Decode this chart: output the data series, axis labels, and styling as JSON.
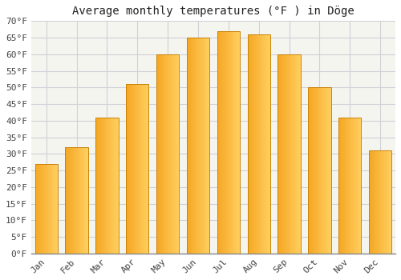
{
  "title": "Average monthly temperatures (°F ) in Döge",
  "months": [
    "Jan",
    "Feb",
    "Mar",
    "Apr",
    "May",
    "Jun",
    "Jul",
    "Aug",
    "Sep",
    "Oct",
    "Nov",
    "Dec"
  ],
  "values": [
    27,
    32,
    41,
    51,
    60,
    65,
    67,
    66,
    60,
    50,
    41,
    31
  ],
  "bar_color_left": "#F5A623",
  "bar_color_right": "#FFD060",
  "bar_edge_color": "#C8830A",
  "background_color": "#ffffff",
  "plot_bg_color": "#f5f5f0",
  "grid_color": "#d0d0d8",
  "ylim": [
    0,
    70
  ],
  "yticks": [
    0,
    5,
    10,
    15,
    20,
    25,
    30,
    35,
    40,
    45,
    50,
    55,
    60,
    65,
    70
  ],
  "ytick_labels": [
    "0°F",
    "5°F",
    "10°F",
    "15°F",
    "20°F",
    "25°F",
    "30°F",
    "35°F",
    "40°F",
    "45°F",
    "50°F",
    "55°F",
    "60°F",
    "65°F",
    "70°F"
  ],
  "title_fontsize": 10,
  "tick_fontsize": 8,
  "bar_width": 0.75
}
